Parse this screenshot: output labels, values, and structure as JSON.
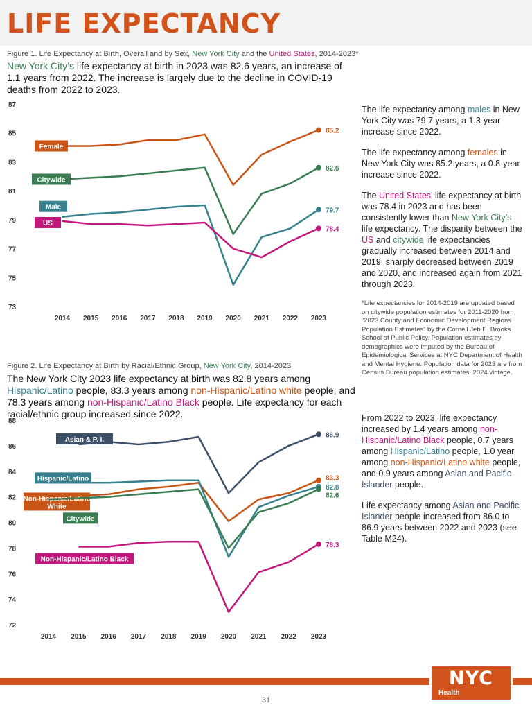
{
  "page": {
    "title": "LIFE EXPECTANCY",
    "page_number": "31",
    "logo_text": "NYC",
    "logo_sub": "Health"
  },
  "figure1": {
    "caption_pre": "Figure 1. Life Expectancy at Birth, Overall and by Sex, ",
    "caption_nyc": "New York City",
    "caption_mid": " and the ",
    "caption_us": "United States",
    "caption_post": ", 2014-2023*",
    "summary_nyc": "New York City’s",
    "summary_rest": " life expectancy at birth in 2023 was 82.6 years, an increase of 1.1 years from 2022. The increase is largely due to the decline in COVID-19 deaths from 2022 to 2023."
  },
  "sidebar1": {
    "p1_a": "The life expectancy among ",
    "p1_b": "males",
    "p1_c": " in New York City was 79.7 years, a 1.3-year increase since 2022.",
    "p2_a": "The life expectancy among ",
    "p2_b": "females",
    "p2_c": " in New York City was 85.2 years, a 0.8-year increase since 2022.",
    "p3_a": "The ",
    "p3_b": "United States’",
    "p3_c": " life expectancy at birth was 78.4 in 2023 and has been consistently lower than ",
    "p3_d": "New York City’s",
    "p3_e": " life expectancy. The disparity between the ",
    "p3_f": "US",
    "p3_g": " and ",
    "p3_h": "citywide",
    "p3_i": " life expectancies gradually increased between 2014 and 2019, sharply decreased between 2019 and 2020, and increased again from 2021 through 2023.",
    "note": "*Life expectancies for 2014-2019 are updated based on citywide population estimates for 2011-2020 from “2023 County and Economic Development Regions Population Estimates” by the Cornell Jeb E. Brooks School of Public Policy. Population estimates by demographics were imputed by the Bureau of Epidemiological Services at NYC Department of Health and Mental Hygiene. Population data for 2023 are from Census Bureau population estimates, 2024 vintage."
  },
  "figure2": {
    "caption_pre": "Figure 2. Life Expectancy at Birth by Racial/Ethnic Group, ",
    "caption_nyc": "New York City",
    "caption_post": ", 2014-2023",
    "summary_a": "The New York City 2023 life expectancy at birth was 82.8 years among ",
    "summary_b": "Hispanic/Latino",
    "summary_c": " people, 83.3 years among ",
    "summary_d": "non-Hispanic/Latino white",
    "summary_e": " people, and 78.3 years among ",
    "summary_f": "non-Hispanic/Latino Black",
    "summary_g": " people. Life expectancy for each racial/ethnic group increased since 2022."
  },
  "sidebar2": {
    "p1_a": "From 2022 to 2023, life expectancy increased by 1.4 years among ",
    "p1_b": "non-Hispanic/Latino Black",
    "p1_c": " people, 0.7 years among ",
    "p1_d": "Hispanic/Latino",
    "p1_e": " people, 1.0 year among ",
    "p1_f": "non-Hispanic/Latino white",
    "p1_g": " people, and 0.9 years among ",
    "p1_h": "Asian and Pacific Islander",
    "p1_i": " people.",
    "p2_a": "Life expectancy among ",
    "p2_b": "Asian and Pacific Islander",
    "p2_c": " people increased from 86.0 to 86.9 years between 2022 and 2023 (see Table M24)."
  },
  "chart_data": [
    {
      "type": "line",
      "title": "",
      "x": [
        "2014",
        "2015",
        "2016",
        "2017",
        "2018",
        "2019",
        "2020",
        "2021",
        "2022",
        "2023"
      ],
      "ylim": [
        73,
        87
      ],
      "yticks": [
        73,
        75,
        77,
        79,
        81,
        83,
        85,
        87
      ],
      "grid": false,
      "series": [
        {
          "name": "Female",
          "color": "#c85516",
          "values": [
            84.1,
            84.1,
            84.2,
            84.5,
            84.5,
            84.9,
            81.4,
            83.5,
            84.4,
            85.2
          ],
          "end_label": "85.2"
        },
        {
          "name": "Citywide",
          "color": "#3a7d53",
          "values": [
            81.8,
            81.9,
            82.0,
            82.2,
            82.4,
            82.6,
            78.0,
            80.8,
            81.5,
            82.6
          ],
          "end_label": "82.6"
        },
        {
          "name": "Male",
          "color": "#37818f",
          "values": [
            79.2,
            79.4,
            79.5,
            79.7,
            79.9,
            80.0,
            74.5,
            77.8,
            78.4,
            79.7
          ],
          "end_label": "79.7"
        },
        {
          "name": "US",
          "color": "#c2187e",
          "values": [
            78.9,
            78.7,
            78.7,
            78.6,
            78.7,
            78.8,
            77.0,
            76.4,
            77.5,
            78.4
          ],
          "end_label": "78.4"
        }
      ]
    },
    {
      "type": "line",
      "title": "",
      "x": [
        "2014",
        "2015",
        "2016",
        "2017",
        "2018",
        "2019",
        "2020",
        "2021",
        "2022",
        "2023"
      ],
      "ylim": [
        72,
        88
      ],
      "yticks": [
        72,
        74,
        76,
        78,
        80,
        82,
        84,
        86,
        88
      ],
      "grid": false,
      "series": [
        {
          "name": "Asian & P. I.",
          "color": "#3d5066",
          "values": [
            null,
            86.1,
            86.3,
            86.1,
            86.3,
            86.7,
            82.3,
            84.7,
            86.0,
            86.9
          ],
          "end_label": "86.9"
        },
        {
          "name": "Non-Hispanic/Latino White",
          "color": "#c85516",
          "values": [
            81.9,
            82.1,
            82.2,
            82.6,
            82.8,
            83.1,
            80.1,
            81.8,
            82.3,
            83.3
          ],
          "end_label": "83.3"
        },
        {
          "name": "Hispanic/Latino",
          "color": "#37818f",
          "values": [
            83.1,
            83.1,
            83.1,
            83.2,
            83.3,
            83.3,
            77.3,
            81.2,
            82.1,
            82.8
          ],
          "end_label": "82.8"
        },
        {
          "name": "Citywide",
          "color": "#3a7d53",
          "values": [
            81.8,
            81.9,
            82.0,
            82.2,
            82.4,
            82.6,
            78.0,
            80.8,
            81.5,
            82.6
          ],
          "end_label": "82.6"
        },
        {
          "name": "Non-Hispanic/Latino Black",
          "color": "#c2187e",
          "values": [
            null,
            78.1,
            78.1,
            78.4,
            78.5,
            78.5,
            73.0,
            76.1,
            76.9,
            78.3
          ],
          "end_label": "78.3"
        }
      ]
    }
  ]
}
